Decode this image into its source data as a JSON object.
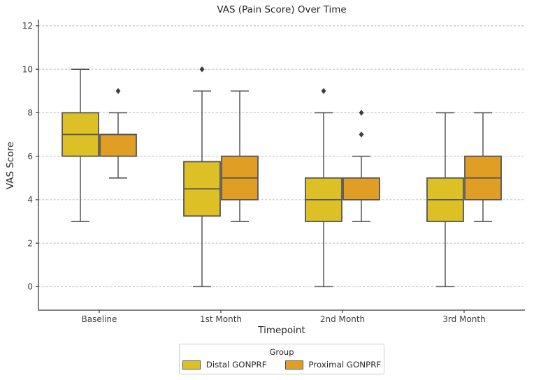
{
  "chart_data": {
    "type": "boxplot",
    "title": "VAS (Pain Score) Over Time",
    "xlabel": "Timepoint",
    "ylabel": "VAS Score",
    "legend_title": "Group",
    "legend_position": "bottom center outside",
    "categories": [
      "Baseline",
      "1st Month",
      "2nd Month",
      "3rd Month"
    ],
    "yticks": [
      0,
      2,
      4,
      6,
      8,
      10,
      12
    ],
    "ylim": [
      -1.08,
      12.19
    ],
    "grid": "horizontal dashed lines at yticks",
    "series": [
      {
        "name": "Distal GONPRF",
        "color": "#dcc026",
        "boxes": [
          {
            "category": "Baseline",
            "whislo": 3,
            "q1": 6,
            "med": 7,
            "q3": 8,
            "whishi": 10,
            "outliers": []
          },
          {
            "category": "1st Month",
            "whislo": 0,
            "q1": 3.25,
            "med": 4.5,
            "q3": 5.75,
            "whishi": 9,
            "outliers": [
              10
            ]
          },
          {
            "category": "2nd Month",
            "whislo": 0,
            "q1": 3,
            "med": 4,
            "q3": 5,
            "whishi": 8,
            "outliers": [
              9
            ]
          },
          {
            "category": "3rd Month",
            "whislo": 0,
            "q1": 3,
            "med": 4,
            "q3": 5,
            "whishi": 8,
            "outliers": []
          }
        ]
      },
      {
        "name": "Proximal GONPRF",
        "color": "#e19e25",
        "boxes": [
          {
            "category": "Baseline",
            "whislo": 5,
            "q1": 6,
            "med": 7,
            "q3": 7,
            "whishi": 8,
            "outliers": [
              9
            ]
          },
          {
            "category": "1st Month",
            "whislo": 3,
            "q1": 4,
            "med": 5,
            "q3": 6,
            "whishi": 9,
            "outliers": []
          },
          {
            "category": "2nd Month",
            "whislo": 3,
            "q1": 4,
            "med": 4,
            "q3": 5,
            "whishi": 6,
            "outliers": [
              7,
              8
            ]
          },
          {
            "category": "3rd Month",
            "whislo": 3,
            "q1": 4,
            "med": 5,
            "q3": 6,
            "whishi": 8,
            "outliers": []
          }
        ]
      }
    ],
    "style": {
      "box_edge_color": "#555555",
      "whisker_color": "#555555",
      "outlier_color": "#3d3d3d",
      "grid_color": "#bababa",
      "spine_color": "#3b3b3b"
    }
  }
}
